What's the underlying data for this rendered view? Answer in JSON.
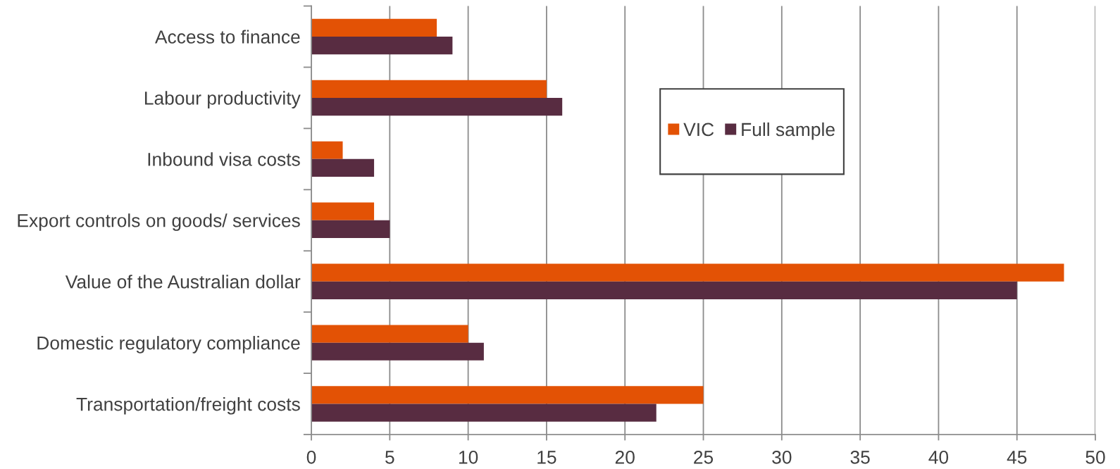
{
  "chart_data": {
    "type": "bar",
    "orientation": "horizontal",
    "categories": [
      "Access to finance",
      "Labour productivity",
      "Inbound visa costs",
      "Export controls on goods/ services",
      "Value of the Australian dollar",
      "Domestic regulatory compliance",
      "Transportation/freight costs"
    ],
    "series": [
      {
        "name": "VIC",
        "color": "#e35205",
        "values": [
          8,
          15,
          2,
          4,
          48,
          10,
          25
        ]
      },
      {
        "name": "Full sample",
        "color": "#582c41",
        "values": [
          9,
          16,
          4,
          5,
          45,
          11,
          22
        ]
      }
    ],
    "xlim": [
      0,
      50
    ],
    "xticks": [
      0,
      5,
      10,
      15,
      20,
      25,
      30,
      35,
      40,
      45,
      50
    ],
    "grid": "x",
    "legend": "top right"
  }
}
